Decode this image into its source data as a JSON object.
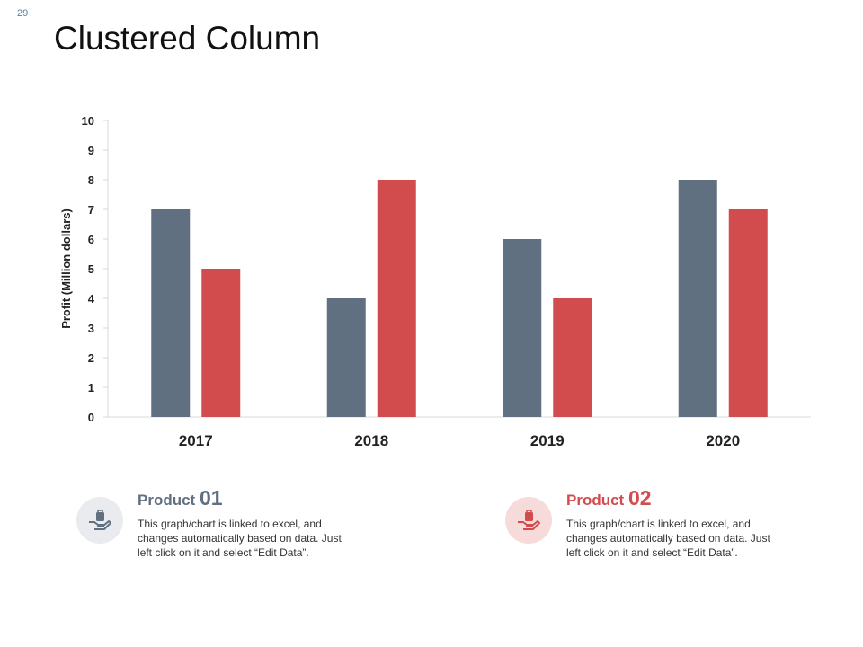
{
  "slide": {
    "number": "29",
    "title": "Clustered Column"
  },
  "colors": {
    "series1": "#607080",
    "series2": "#d24c4e"
  },
  "chart_data": {
    "type": "bar",
    "title": "Clustered Column",
    "xlabel": "",
    "ylabel": "Profit  (Million dollars)",
    "categories": [
      "2017",
      "2018",
      "2019",
      "2020"
    ],
    "series": [
      {
        "name": "Product 01",
        "values": [
          7,
          4,
          6,
          8
        ]
      },
      {
        "name": "Product 02",
        "values": [
          5,
          8,
          4,
          7
        ]
      }
    ],
    "ylim": [
      0,
      10
    ],
    "yticks": [
      0,
      1,
      2,
      3,
      4,
      5,
      6,
      7,
      8,
      9,
      10
    ],
    "grid": false
  },
  "legend": [
    {
      "label": "Product",
      "number": "01",
      "icon": "hand-holding-bag-icon",
      "description": "This graph/chart is linked to excel, and changes automatically based on data. Just left click on it and select “Edit Data”."
    },
    {
      "label": "Product",
      "number": "02",
      "icon": "hand-holding-bag-icon",
      "description": "This graph/chart is linked to excel, and changes automatically based on data. Just left click on it and select “Edit Data”."
    }
  ]
}
